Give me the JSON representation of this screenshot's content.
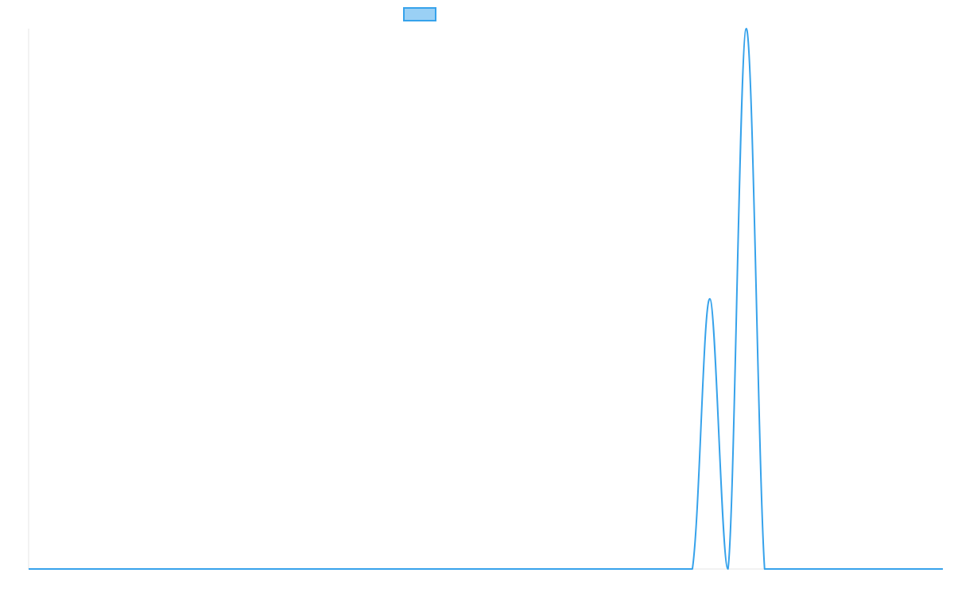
{
  "chart_data": {
    "type": "line",
    "title": "",
    "xlabel": "",
    "ylabel": "",
    "grid": false,
    "legend_position": "top-center",
    "x": [
      0,
      10,
      20,
      30,
      40,
      50,
      60,
      70,
      72.6,
      74.5,
      76.5,
      78.5,
      80.5,
      82.4,
      90,
      100
    ],
    "ylim": [
      0,
      1
    ],
    "xlim": [
      0,
      100
    ],
    "series": [
      {
        "name": "",
        "color": "#36a2eb",
        "fill": "#9ad0f5",
        "values": [
          0,
          0,
          0,
          0,
          0,
          0,
          0,
          0,
          0,
          0.5,
          0,
          1.0,
          0,
          0,
          0,
          0
        ]
      }
    ]
  }
}
